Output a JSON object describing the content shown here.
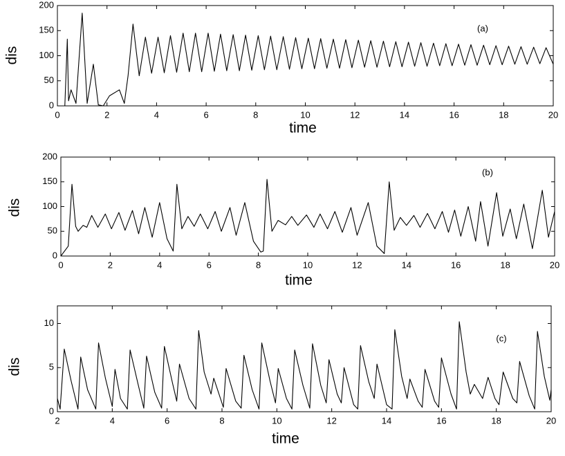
{
  "chart_data": [
    {
      "type": "line",
      "title": "(a)",
      "xlabel": "time",
      "ylabel": "dis",
      "x": [
        0,
        0.3,
        0.4,
        0.45,
        0.55,
        0.75,
        1.0,
        1.2,
        1.45,
        1.65,
        1.85,
        2.1,
        2.5,
        2.7,
        2.85,
        3.05,
        3.3,
        3.55,
        3.8,
        4.06,
        4.31,
        4.56,
        4.81,
        5.07,
        5.32,
        5.57,
        5.82,
        6.08,
        6.33,
        6.58,
        6.83,
        7.09,
        7.34,
        7.59,
        7.84,
        8.1,
        8.35,
        8.6,
        8.85,
        9.11,
        9.36,
        9.61,
        9.86,
        10.12,
        10.37,
        10.62,
        10.87,
        11.13,
        11.38,
        11.63,
        11.88,
        12.14,
        12.39,
        12.64,
        12.89,
        13.15,
        13.4,
        13.65,
        13.9,
        14.16,
        14.41,
        14.66,
        14.91,
        15.17,
        15.42,
        15.67,
        15.92,
        16.18,
        16.43,
        16.68,
        16.93,
        17.19,
        17.44,
        17.69,
        17.94,
        18.2,
        18.45,
        18.7,
        18.95,
        19.21,
        19.46,
        19.71,
        20
      ],
      "series": [
        {
          "color": "#000000",
          "values": [
            0,
            0,
            133,
            10,
            32,
            5,
            185,
            5,
            83,
            2,
            0,
            20,
            32,
            5,
            60,
            163,
            60,
            137,
            65,
            137,
            66,
            140,
            67,
            145,
            68,
            145,
            68,
            145,
            69,
            143,
            70,
            142,
            70,
            141,
            71,
            140,
            72,
            139,
            72,
            138,
            73,
            136,
            74,
            135,
            74,
            134,
            75,
            133,
            75,
            132,
            76,
            131,
            77,
            130,
            77,
            129,
            78,
            128,
            78,
            127,
            79,
            126,
            79,
            125,
            80,
            124,
            80,
            123,
            81,
            122,
            81,
            121,
            82,
            120,
            82,
            119,
            83,
            118,
            83,
            117,
            84,
            116,
            83
          ]
        }
      ],
      "xlim": [
        0,
        20
      ],
      "ylim": [
        0,
        200
      ],
      "xticks": [
        0,
        2,
        4,
        6,
        8,
        10,
        12,
        14,
        16,
        18,
        20
      ],
      "yticks": [
        0,
        50,
        100,
        150,
        200
      ]
    },
    {
      "type": "line",
      "title": "(b)",
      "xlabel": "time",
      "ylabel": "dis",
      "x": [
        0,
        0.3,
        0.45,
        0.6,
        0.7,
        0.9,
        1.05,
        1.25,
        1.5,
        1.8,
        2.05,
        2.35,
        2.6,
        2.9,
        3.15,
        3.4,
        3.7,
        4.0,
        4.3,
        4.55,
        4.7,
        4.9,
        5.15,
        5.4,
        5.65,
        5.95,
        6.25,
        6.5,
        6.85,
        7.1,
        7.45,
        7.8,
        8.1,
        8.2,
        8.35,
        8.55,
        8.8,
        9.1,
        9.35,
        9.6,
        9.95,
        10.25,
        10.5,
        10.8,
        11.1,
        11.4,
        11.75,
        12.0,
        12.45,
        12.8,
        13.1,
        13.3,
        13.5,
        13.75,
        14.0,
        14.3,
        14.55,
        14.85,
        15.15,
        15.45,
        15.7,
        15.95,
        16.2,
        16.5,
        16.8,
        17.0,
        17.3,
        17.65,
        17.9,
        18.2,
        18.45,
        18.75,
        19.1,
        19.5,
        19.75,
        20
      ],
      "series": [
        {
          "color": "#000000",
          "values": [
            0,
            20,
            145,
            60,
            50,
            62,
            58,
            82,
            58,
            85,
            55,
            88,
            52,
            92,
            45,
            98,
            38,
            108,
            35,
            10,
            145,
            55,
            80,
            60,
            85,
            55,
            90,
            50,
            98,
            42,
            108,
            30,
            8,
            10,
            155,
            50,
            72,
            63,
            80,
            62,
            83,
            58,
            85,
            55,
            90,
            48,
            98,
            42,
            108,
            20,
            5,
            150,
            52,
            78,
            62,
            82,
            58,
            86,
            55,
            90,
            48,
            93,
            40,
            100,
            30,
            110,
            20,
            128,
            40,
            95,
            35,
            105,
            15,
            133,
            38,
            90
          ]
        }
      ],
      "xlim": [
        0,
        20
      ],
      "ylim": [
        0,
        200
      ],
      "xticks": [
        0,
        2,
        4,
        6,
        8,
        10,
        12,
        14,
        16,
        18,
        20
      ],
      "yticks": [
        0,
        50,
        100,
        150,
        200
      ]
    },
    {
      "type": "line",
      "title": "(c)",
      "xlabel": "time",
      "ylabel": "dis",
      "x": [
        2.0,
        2.1,
        2.25,
        2.5,
        2.75,
        2.85,
        3.1,
        3.4,
        3.5,
        3.75,
        4.0,
        4.1,
        4.3,
        4.55,
        4.65,
        4.95,
        5.15,
        5.25,
        5.55,
        5.8,
        5.9,
        6.2,
        6.35,
        6.45,
        6.8,
        7.05,
        7.15,
        7.35,
        7.6,
        7.7,
        8.05,
        8.15,
        8.5,
        8.7,
        8.8,
        9.1,
        9.35,
        9.45,
        9.75,
        9.95,
        10.05,
        10.35,
        10.55,
        10.65,
        10.95,
        11.2,
        11.3,
        11.6,
        11.8,
        11.9,
        12.2,
        12.35,
        12.45,
        12.8,
        12.95,
        13.05,
        13.35,
        13.55,
        13.65,
        14.0,
        14.2,
        14.3,
        14.55,
        14.75,
        14.85,
        15.15,
        15.3,
        15.4,
        15.75,
        15.9,
        16.0,
        16.35,
        16.55,
        16.65,
        16.9,
        17.05,
        17.2,
        17.5,
        17.7,
        17.95,
        18.1,
        18.25,
        18.6,
        18.75,
        18.85,
        19.2,
        19.4,
        19.5,
        19.75,
        19.95,
        20.0
      ],
      "series": [
        {
          "color": "#000000",
          "values": [
            1.5,
            0.3,
            7.1,
            3.5,
            0.3,
            6.2,
            2.5,
            0.3,
            7.8,
            3.8,
            0.6,
            4.8,
            1.5,
            0.3,
            7.0,
            3.0,
            0.4,
            6.3,
            2.2,
            0.4,
            7.4,
            3.2,
            1.2,
            5.4,
            1.5,
            0.3,
            9.2,
            4.5,
            2.0,
            3.8,
            0.5,
            4.9,
            1.2,
            0.4,
            6.4,
            2.5,
            0.3,
            7.8,
            3.5,
            1.0,
            4.9,
            1.5,
            0.3,
            7.0,
            3.0,
            0.4,
            7.7,
            3.0,
            1.0,
            5.9,
            2.0,
            1.0,
            5.0,
            0.8,
            0.3,
            7.5,
            3.4,
            1.5,
            5.4,
            0.8,
            0.3,
            9.3,
            4.0,
            1.5,
            3.7,
            1.2,
            0.5,
            4.8,
            1.2,
            0.5,
            6.1,
            2.0,
            0.3,
            10.2,
            4.5,
            2.0,
            3.1,
            1.5,
            3.9,
            1.5,
            0.8,
            4.5,
            1.5,
            1.0,
            5.7,
            1.8,
            0.3,
            9.1,
            4.0,
            1.3,
            2.5
          ]
        }
      ],
      "xlim": [
        2,
        20
      ],
      "ylim": [
        0,
        12
      ],
      "xticks": [
        2,
        4,
        6,
        8,
        10,
        12,
        14,
        16,
        18,
        20
      ],
      "yticks": [
        0,
        5,
        10
      ]
    }
  ]
}
